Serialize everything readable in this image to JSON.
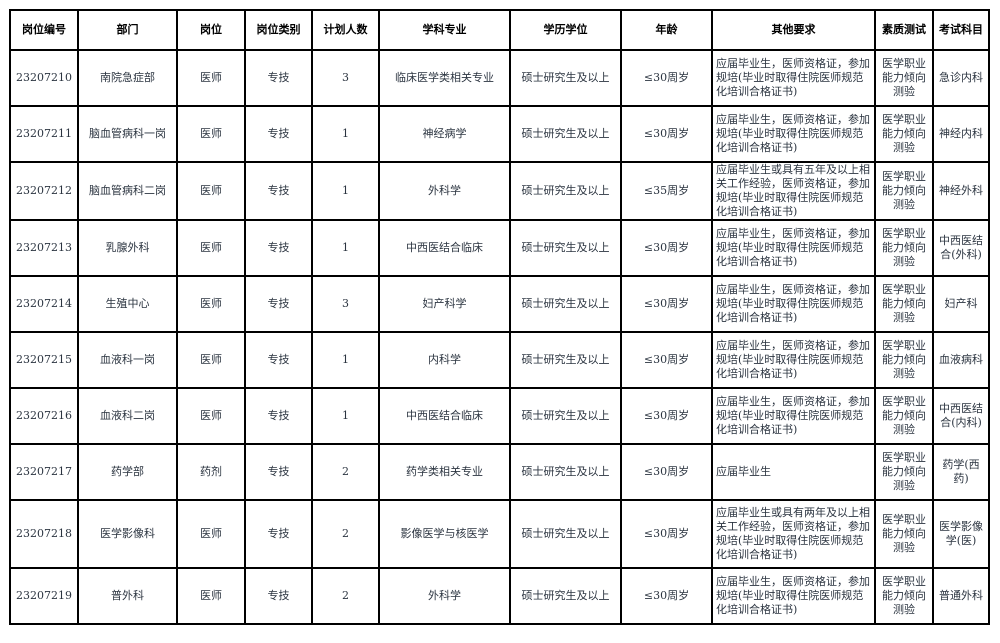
{
  "headers": [
    "岗位编号",
    "部门",
    "岗位",
    "岗位类别",
    "计划人数",
    "学科专业",
    "学历学位",
    "年龄",
    "其他要求",
    "素质测试",
    "考试科目"
  ],
  "rows": [
    {
      "code": "23207210",
      "dept": "南院急症部",
      "post": "医师",
      "type": "专技",
      "count": "3",
      "major": "临床医学类相关专业",
      "degree": "硕士研究生及以上",
      "age": "≤30周岁",
      "req": "应届毕业生，医师资格证，参加规培(毕业时取得住院医师规范化培训合格证书)",
      "test": "医学职业能力倾向测验",
      "subject": "急诊内科"
    },
    {
      "code": "23207211",
      "dept": "脑血管病科一岗",
      "post": "医师",
      "type": "专技",
      "count": "1",
      "major": "神经病学",
      "degree": "硕士研究生及以上",
      "age": "≤30周岁",
      "req": "应届毕业生，医师资格证，参加规培(毕业时取得住院医师规范化培训合格证书)",
      "test": "医学职业能力倾向测验",
      "subject": "神经内科"
    },
    {
      "code": "23207212",
      "dept": "脑血管病科二岗",
      "post": "医师",
      "type": "专技",
      "count": "1",
      "major": "外科学",
      "degree": "硕士研究生及以上",
      "age": "≤35周岁",
      "req": "应届毕业生或具有五年及以上相关工作经验，医师资格证，参加规培(毕业时取得住院医师规范化培训合格证书)",
      "test": "医学职业能力倾向测验",
      "subject": "神经外科"
    },
    {
      "code": "23207213",
      "dept": "乳腺外科",
      "post": "医师",
      "type": "专技",
      "count": "1",
      "major": "中西医结合临床",
      "degree": "硕士研究生及以上",
      "age": "≤30周岁",
      "req": "应届毕业生，医师资格证，参加规培(毕业时取得住院医师规范化培训合格证书)",
      "test": "医学职业能力倾向测验",
      "subject": "中西医结合(外科)"
    },
    {
      "code": "23207214",
      "dept": "生殖中心",
      "post": "医师",
      "type": "专技",
      "count": "3",
      "major": "妇产科学",
      "degree": "硕士研究生及以上",
      "age": "≤30周岁",
      "req": "应届毕业生，医师资格证，参加规培(毕业时取得住院医师规范化培训合格证书)",
      "test": "医学职业能力倾向测验",
      "subject": "妇产科"
    },
    {
      "code": "23207215",
      "dept": "血液科一岗",
      "post": "医师",
      "type": "专技",
      "count": "1",
      "major": "内科学",
      "degree": "硕士研究生及以上",
      "age": "≤30周岁",
      "req": "应届毕业生，医师资格证，参加规培(毕业时取得住院医师规范化培训合格证书)",
      "test": "医学职业能力倾向测验",
      "subject": "血液病科"
    },
    {
      "code": "23207216",
      "dept": "血液科二岗",
      "post": "医师",
      "type": "专技",
      "count": "1",
      "major": "中西医结合临床",
      "degree": "硕士研究生及以上",
      "age": "≤30周岁",
      "req": "应届毕业生，医师资格证，参加规培(毕业时取得住院医师规范化培训合格证书)",
      "test": "医学职业能力倾向测验",
      "subject": "中西医结合(内科)"
    },
    {
      "code": "23207217",
      "dept": "药学部",
      "post": "药剂",
      "type": "专技",
      "count": "2",
      "major": "药学类相关专业",
      "degree": "硕士研究生及以上",
      "age": "≤30周岁",
      "req": "应届毕业生",
      "test": "医学职业能力倾向测验",
      "subject": "药学(西药)"
    },
    {
      "code": "23207218",
      "dept": "医学影像科",
      "post": "医师",
      "type": "专技",
      "count": "2",
      "major": "影像医学与核医学",
      "degree": "硕士研究生及以上",
      "age": "≤30周岁",
      "req": "应届毕业生或具有两年及以上相关工作经验，医师资格证，参加规培(毕业时取得住院医师规范化培训合格证书)",
      "test": "医学职业能力倾向测验",
      "subject": "医学影像学(医)"
    },
    {
      "code": "23207219",
      "dept": "普外科",
      "post": "医师",
      "type": "专技",
      "count": "2",
      "major": "外科学",
      "degree": "硕士研究生及以上",
      "age": "≤30周岁",
      "req": "应届毕业生，医师资格证，参加规培(毕业时取得住院医师规范化培训合格证书)",
      "test": "医学职业能力倾向测验",
      "subject": "普通外科"
    }
  ]
}
